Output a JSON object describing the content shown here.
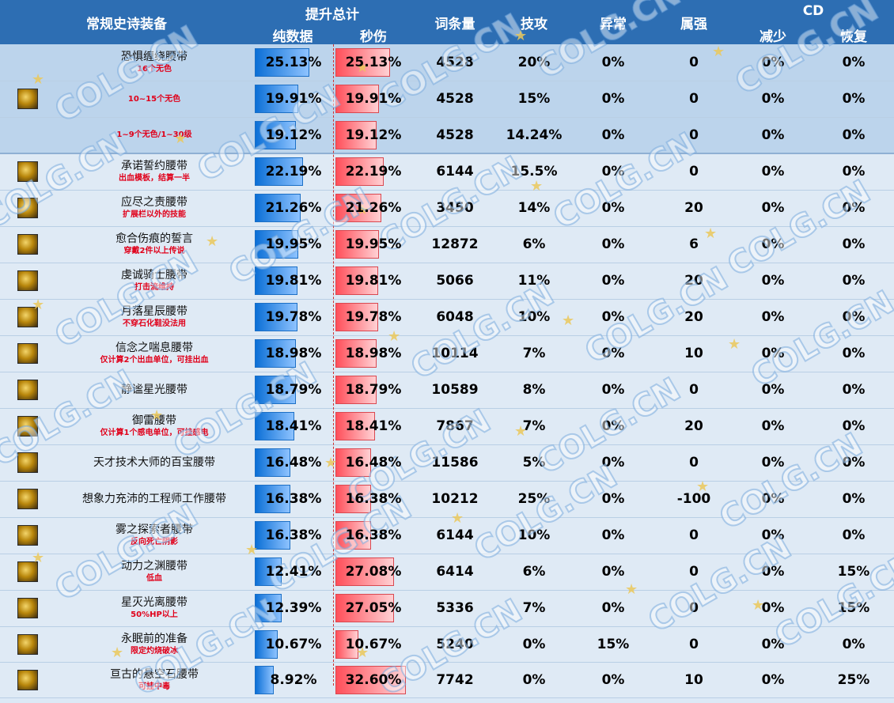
{
  "header": {
    "col_name": "常规史诗装备",
    "col_total": "提升总计",
    "col_pure": "纯数据",
    "col_dps": "秒伤",
    "col_count": "词条量",
    "col_skill": "技攻",
    "col_status": "异常",
    "col_elem": "属强",
    "col_cd": "CD",
    "col_cd_reduce": "减少",
    "col_cd_recover": "恢复"
  },
  "watermark": "COLG.CN",
  "rows": [
    {
      "name": "恐惧缠绕腰带",
      "note": "16个无色",
      "pure": "25.13%",
      "pure_v": 25.13,
      "dps": "25.13%",
      "dps_v": 25.13,
      "count": "4528",
      "skill": "20%",
      "skill_red": false,
      "status": "0%",
      "elem": "0",
      "cd_reduce": "0%",
      "cd_recover": "0%",
      "group": true,
      "icon": false
    },
    {
      "name": "",
      "note": "10~15个无色",
      "pure": "19.91%",
      "pure_v": 19.91,
      "dps": "19.91%",
      "dps_v": 19.91,
      "count": "4528",
      "skill": "15%",
      "skill_red": false,
      "status": "0%",
      "elem": "0",
      "cd_reduce": "0%",
      "cd_recover": "0%",
      "group": true,
      "icon": true
    },
    {
      "name": "",
      "note": "1~9个无色/1~30级",
      "pure": "19.12%",
      "pure_v": 19.12,
      "dps": "19.12%",
      "dps_v": 19.12,
      "count": "4528",
      "skill": "14.24%",
      "skill_red": false,
      "status": "0%",
      "elem": "0",
      "cd_reduce": "0%",
      "cd_recover": "0%",
      "group": true,
      "icon": false,
      "last": true
    },
    {
      "name": "承诺誓约腰带",
      "note": "出血模板，结算一半",
      "pure": "22.19%",
      "pure_v": 22.19,
      "dps": "22.19%",
      "dps_v": 22.19,
      "count": "6144",
      "skill": "15.5%",
      "skill_red": true,
      "status": "0%",
      "elem": "0",
      "cd_reduce": "0%",
      "cd_recover": "0%",
      "icon": true
    },
    {
      "name": "应尽之责腰带",
      "note": "扩展栏以外的技能",
      "pure": "21.26%",
      "pure_v": 21.26,
      "dps": "21.26%",
      "dps_v": 21.26,
      "count": "3450",
      "skill": "14%",
      "skill_red": false,
      "status": "0%",
      "elem": "20",
      "cd_reduce": "0%",
      "cd_recover": "0%",
      "icon": true
    },
    {
      "name": "愈合伤痕的誓言",
      "note": "穿戴2件以上传说",
      "pure": "19.95%",
      "pure_v": 19.95,
      "dps": "19.95%",
      "dps_v": 19.95,
      "count": "12872",
      "skill": "6%",
      "skill_red": false,
      "status": "0%",
      "elem": "6",
      "cd_reduce": "0%",
      "cd_recover": "0%",
      "icon": true
    },
    {
      "name": "虔诚骑士腰带",
      "note": "打击流维持",
      "pure": "19.81%",
      "pure_v": 19.81,
      "dps": "19.81%",
      "dps_v": 19.81,
      "count": "5066",
      "skill": "11%",
      "skill_red": false,
      "status": "0%",
      "elem": "20",
      "cd_reduce": "0%",
      "cd_recover": "0%",
      "icon": true
    },
    {
      "name": "月落星辰腰带",
      "note": "不穿石化鞋没法用",
      "pure": "19.78%",
      "pure_v": 19.78,
      "dps": "19.78%",
      "dps_v": 19.78,
      "count": "6048",
      "skill": "10%",
      "skill_red": false,
      "status": "0%",
      "elem": "20",
      "cd_reduce": "0%",
      "cd_recover": "0%",
      "icon": true
    },
    {
      "name": "信念之喘息腰带",
      "note": "仅计算2个出血单位，可挂出血",
      "pure": "18.98%",
      "pure_v": 18.98,
      "dps": "18.98%",
      "dps_v": 18.98,
      "count": "10114",
      "skill": "7%",
      "skill_red": false,
      "status": "0%",
      "elem": "10",
      "cd_reduce": "0%",
      "cd_recover": "0%",
      "icon": true
    },
    {
      "name": "静谧星光腰带",
      "note": "",
      "pure": "18.79%",
      "pure_v": 18.79,
      "dps": "18.79%",
      "dps_v": 18.79,
      "count": "10589",
      "skill": "8%",
      "skill_red": false,
      "status": "0%",
      "elem": "0",
      "cd_reduce": "0%",
      "cd_recover": "0%",
      "icon": true
    },
    {
      "name": "御雷腰带",
      "note": "仅计算1个感电单位，可挂感电",
      "pure": "18.41%",
      "pure_v": 18.41,
      "dps": "18.41%",
      "dps_v": 18.41,
      "count": "7867",
      "skill": "7%",
      "skill_red": false,
      "status": "0%",
      "elem": "20",
      "cd_reduce": "0%",
      "cd_recover": "0%",
      "icon": true
    },
    {
      "name": "天才技术大师的百宝腰带",
      "note": "",
      "pure": "16.48%",
      "pure_v": 16.48,
      "dps": "16.48%",
      "dps_v": 16.48,
      "count": "11586",
      "skill": "5%",
      "skill_red": false,
      "status": "0%",
      "elem": "0",
      "cd_reduce": "0%",
      "cd_recover": "0%",
      "icon": true
    },
    {
      "name": "想象力充沛的工程师工作腰带",
      "note": "",
      "pure": "16.38%",
      "pure_v": 16.38,
      "dps": "16.38%",
      "dps_v": 16.38,
      "count": "10212",
      "skill": "25%",
      "skill_red": false,
      "status": "0%",
      "elem": "-100",
      "cd_reduce": "0%",
      "cd_recover": "0%",
      "icon": true
    },
    {
      "name": "雾之探索者腰带",
      "note": "反向死亡阴影",
      "pure": "16.38%",
      "pure_v": 16.38,
      "dps": "16.38%",
      "dps_v": 16.38,
      "count": "6144",
      "skill": "10%",
      "skill_red": false,
      "status": "0%",
      "elem": "0",
      "cd_reduce": "0%",
      "cd_recover": "0%",
      "icon": true
    },
    {
      "name": "动力之渊腰带",
      "note": "低血",
      "pure": "12.41%",
      "pure_v": 12.41,
      "dps": "27.08%",
      "dps_v": 27.08,
      "count": "6414",
      "skill": "6%",
      "skill_red": false,
      "status": "0%",
      "elem": "0",
      "cd_reduce": "0%",
      "cd_recover": "15%",
      "icon": true
    },
    {
      "name": "星灭光离腰带",
      "note": "50%HP以上",
      "pure": "12.39%",
      "pure_v": 12.39,
      "dps": "27.05%",
      "dps_v": 27.05,
      "count": "5336",
      "skill": "7%",
      "skill_red": false,
      "status": "0%",
      "elem": "0",
      "cd_reduce": "0%",
      "cd_recover": "15%",
      "icon": true
    },
    {
      "name": "永眠前的准备",
      "note": "限定灼烧破冰",
      "pure": "10.67%",
      "pure_v": 10.67,
      "dps": "10.67%",
      "dps_v": 10.67,
      "count": "5240",
      "skill": "0%",
      "skill_red": false,
      "status": "15%",
      "elem": "0",
      "cd_reduce": "0%",
      "cd_recover": "0%",
      "icon": true
    },
    {
      "name": "亘古的悬空石腰带",
      "note": "可挂中毒",
      "pure": "8.92%",
      "pure_v": 8.92,
      "dps": "32.60%",
      "dps_v": 32.6,
      "count": "7742",
      "skill": "0%",
      "skill_red": false,
      "status": "0%",
      "elem": "10",
      "cd_reduce": "0%",
      "cd_recover": "25%",
      "icon": true
    }
  ]
}
